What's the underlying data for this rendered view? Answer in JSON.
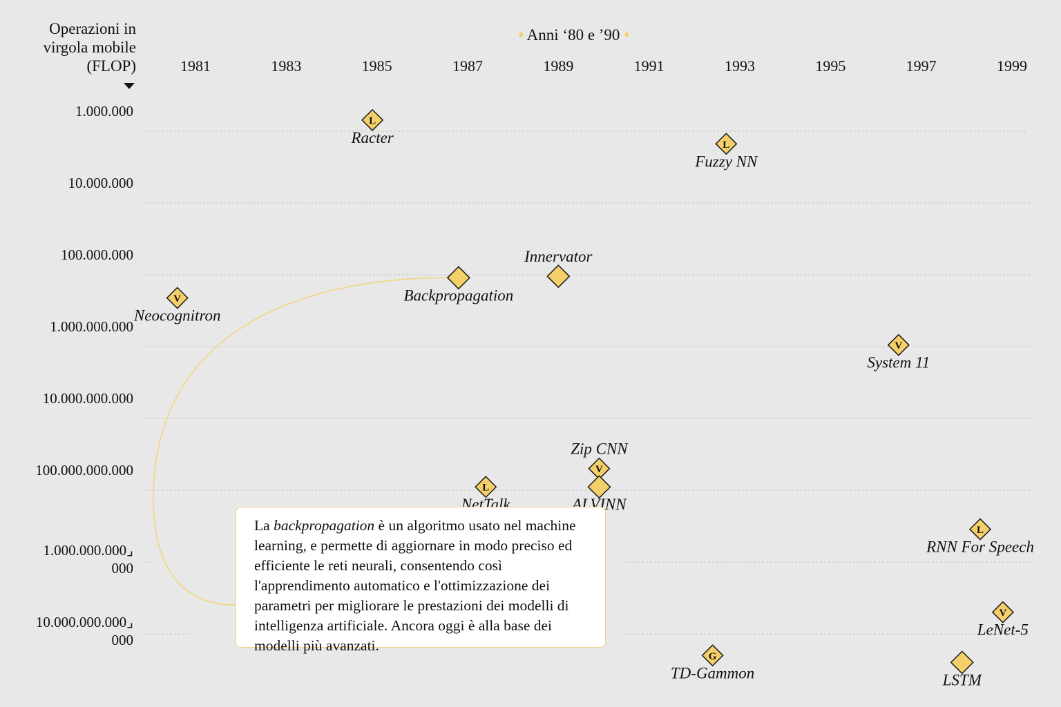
{
  "chart_data": {
    "type": "scatter",
    "title": "Anni ‘80 e ’90",
    "ylabel": "Operazioni in virgola mobile (FLOP)",
    "ylabel_lines": [
      "Operazioni in",
      "virgola mobile",
      "(FLOP)"
    ],
    "xlabel": "",
    "x_axis_position": "top",
    "y_axis_direction": "increasing-downward",
    "y_scale": "log",
    "xlim": [
      1980.3,
      1999.8
    ],
    "x_ticks": [
      1981,
      1983,
      1985,
      1987,
      1989,
      1991,
      1993,
      1995,
      1997,
      1999
    ],
    "y_ticks": [
      {
        "value": 1000000,
        "label": [
          "1.000.000"
        ]
      },
      {
        "value": 10000000,
        "label": [
          "10.000.000"
        ]
      },
      {
        "value": 100000000,
        "label": [
          "100.000.000"
        ]
      },
      {
        "value": 1000000000,
        "label": [
          "1.000.000.000"
        ]
      },
      {
        "value": 10000000000,
        "label": [
          "10.000.000.000"
        ]
      },
      {
        "value": 100000000000,
        "label": [
          "100.000.000.000"
        ]
      },
      {
        "value": 1000000000000,
        "label": [
          "1.000.000.000⌟",
          "000"
        ]
      },
      {
        "value": 10000000000000,
        "label": [
          "10.000.000.000⌟",
          "000"
        ]
      }
    ],
    "grid": "horizontal-dashed",
    "marker_color": "#f5cf6a",
    "points": [
      {
        "name": "Racter",
        "x": 1984.9,
        "y": 700000,
        "letter": "L",
        "label_pos": "below"
      },
      {
        "name": "Fuzzy NN",
        "x": 1992.7,
        "y": 1500000,
        "letter": "L",
        "label_pos": "below"
      },
      {
        "name": "Neocognitron",
        "x": 1980.6,
        "y": 210000000,
        "letter": "V",
        "label_pos": "below"
      },
      {
        "name": "Backpropagation",
        "x": 1986.8,
        "y": 110000000,
        "letter": "",
        "label_pos": "below"
      },
      {
        "name": "Innervator",
        "x": 1989.0,
        "y": 105000000,
        "letter": "",
        "label_pos": "above"
      },
      {
        "name": "System 11",
        "x": 1996.5,
        "y": 950000000,
        "letter": "V",
        "label_pos": "below"
      },
      {
        "name": "Zip CNN",
        "x": 1989.9,
        "y": 50000000000,
        "letter": "V",
        "label_pos": "above"
      },
      {
        "name": "ALVINN",
        "x": 1989.9,
        "y": 90000000000,
        "letter": "",
        "label_pos": "below"
      },
      {
        "name": "NetTalk",
        "x": 1987.4,
        "y": 90000000000,
        "letter": "L",
        "label_pos": "below"
      },
      {
        "name": "RNN For Speech",
        "x": 1998.3,
        "y": 350000000000,
        "letter": "L",
        "label_pos": "below"
      },
      {
        "name": "LeNet-5",
        "x": 1998.8,
        "y": 5000000000000,
        "letter": "V",
        "label_pos": "below"
      },
      {
        "name": "TD-Gammon",
        "x": 1992.4,
        "y": 20000000000000,
        "letter": "G",
        "label_pos": "below"
      },
      {
        "name": "LSTM",
        "x": 1997.9,
        "y": 25000000000000,
        "letter": "",
        "label_pos": "below"
      }
    ],
    "annotation": {
      "target": "Backpropagation",
      "text_parts": [
        {
          "text": "La ",
          "italic": false
        },
        {
          "text": "backpropagation",
          "italic": true
        },
        {
          "text": " è un algoritmo usato nel machine learning, e permette di aggiornare in modo preciso ed efficiente le reti neurali, consentendo così l'apprendimento automatico e l'ottimizzazione dei parametri per migliorare le prestazioni dei modelli di intelligenza artificiale. Ancora oggi è alla base dei modelli più avanzati.",
          "italic": false
        }
      ],
      "connector_color": "#f3d479"
    }
  }
}
